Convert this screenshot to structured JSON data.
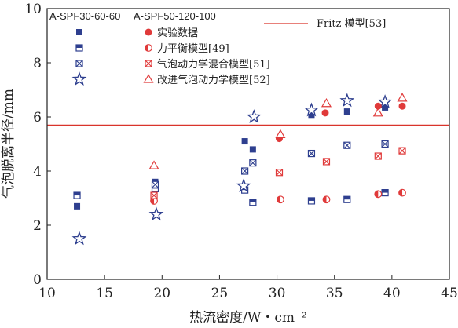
{
  "chart_data": {
    "type": "scatter",
    "xlabel": "热流密度/W・cm⁻²",
    "ylabel": "气泡脱离半径/mm",
    "xlim": [
      10,
      45
    ],
    "ylim": [
      0,
      10
    ],
    "xticks": [
      10,
      15,
      20,
      25,
      30,
      35,
      40,
      45
    ],
    "yticks": [
      0,
      2,
      4,
      6,
      8,
      10
    ],
    "xtick_labels": [
      "10",
      "15",
      "20",
      "25",
      "30",
      "35",
      "40",
      "45"
    ],
    "ytick_labels": [
      "0",
      "2",
      "4",
      "6",
      "8",
      "10"
    ],
    "legend": {
      "placement": "top",
      "group_headers": [
        "A-SPF30-60-60",
        "A-SPF50-120-100"
      ],
      "fritz_label": "Fritz 模型[53]",
      "rows": [
        "实验数据",
        "力平衡模型[49]",
        "气泡动力学混合模型[51]",
        "改进气泡动力学模型[52]"
      ]
    },
    "fritz_value": 5.7,
    "colors": {
      "blue": "#2e3f8f",
      "red": "#e03a3a",
      "fritz": "#d9342b"
    },
    "series": [
      {
        "name": "实验数据",
        "group": "A-SPF30-60-60",
        "marker": "filled-square",
        "x": [
          12.6,
          19.4,
          27.2,
          27.9,
          33.0,
          36.1,
          39.4
        ],
        "y": [
          2.7,
          3.6,
          5.1,
          4.8,
          6.05,
          6.2,
          6.35
        ]
      },
      {
        "name": "力平衡模型[49]",
        "group": "A-SPF30-60-60",
        "marker": "half-square",
        "x": [
          12.6,
          19.4,
          27.2,
          27.9,
          33.0,
          36.1,
          39.4
        ],
        "y": [
          3.1,
          3.35,
          3.3,
          2.85,
          2.9,
          2.95,
          3.2
        ]
      },
      {
        "name": "气泡动力学混合模型[51]",
        "group": "A-SPF30-60-60",
        "marker": "x-square",
        "x": [
          19.4,
          27.2,
          27.9,
          33.0,
          36.1,
          39.4
        ],
        "y": [
          3.5,
          4.0,
          4.3,
          4.65,
          4.95,
          5.0
        ]
      },
      {
        "name": "改进气泡动力学模型[52]",
        "group": "A-SPF30-60-60",
        "marker": "star",
        "x": [
          12.8,
          19.5,
          27.1,
          28.0,
          33.0,
          36.1,
          39.4
        ],
        "y": [
          1.5,
          2.4,
          3.45,
          6.0,
          6.25,
          6.6,
          6.55
        ]
      },
      {
        "name": "实验数据",
        "group": "A-SPF50-120-100",
        "marker": "filled-circle",
        "x": [
          30.2,
          34.2,
          38.8,
          40.9
        ],
        "y": [
          5.2,
          6.15,
          6.4,
          6.4
        ]
      },
      {
        "name": "力平衡模型[49]",
        "group": "A-SPF50-120-100",
        "marker": "half-circle",
        "x": [
          19.3,
          30.3,
          34.3,
          38.8,
          40.9
        ],
        "y": [
          2.9,
          2.95,
          2.95,
          3.15,
          3.2
        ]
      },
      {
        "name": "气泡动力学混合模型[51]",
        "group": "A-SPF50-120-100",
        "marker": "x-box",
        "x": [
          19.3,
          30.2,
          34.3,
          38.8,
          40.9
        ],
        "y": [
          3.1,
          3.95,
          4.35,
          4.55,
          4.75
        ]
      },
      {
        "name": "改进气泡动力学模型[52]",
        "group": "A-SPF50-120-100",
        "marker": "triangle",
        "x": [
          19.3,
          30.3,
          34.3,
          38.8,
          40.9
        ],
        "y": [
          4.2,
          5.35,
          6.5,
          6.15,
          6.7
        ]
      }
    ]
  }
}
